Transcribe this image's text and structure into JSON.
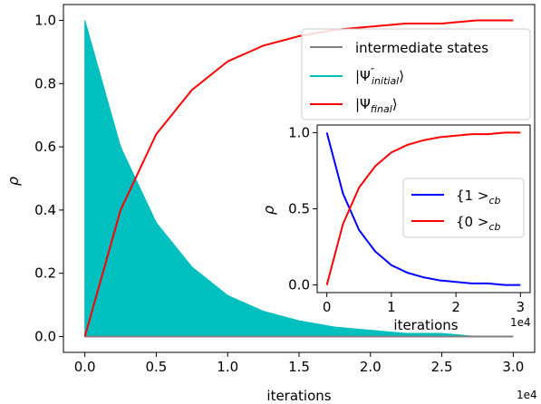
{
  "chart_data": [
    {
      "type": "line",
      "xlabel": "iterations",
      "ylabel": "ρ",
      "x_offset_label": "1e4",
      "xlim": [
        -1500,
        31500
      ],
      "ylim": [
        -0.05,
        1.05
      ],
      "xticks": [
        0,
        5000,
        10000,
        15000,
        20000,
        25000,
        30000
      ],
      "xtick_labels": [
        "0.0",
        "0.5",
        "1.0",
        "1.5",
        "2.0",
        "2.5",
        "3.0"
      ],
      "yticks": [
        0.0,
        0.2,
        0.4,
        0.6,
        0.8,
        1.0
      ],
      "ytick_labels": [
        "0.0",
        "0.2",
        "0.4",
        "0.6",
        "0.8",
        "1.0"
      ],
      "legend_location": "upper right",
      "series": [
        {
          "name": "intermediate states",
          "color": "#808080",
          "x": [
            0,
            30000
          ],
          "y": [
            0.0,
            0.0
          ]
        },
        {
          "name": "|Ψ″initial⟩",
          "color": "#00bfbf",
          "style": "filled oscillation envelope",
          "x": [
            0,
            2500,
            5000,
            7500,
            10000,
            12500,
            15000,
            17500,
            20000,
            22500,
            25000,
            27500,
            30000
          ],
          "y": [
            1.0,
            0.6,
            0.36,
            0.22,
            0.13,
            0.08,
            0.05,
            0.03,
            0.02,
            0.01,
            0.01,
            0.0,
            0.0
          ]
        },
        {
          "name": "|Ψfinal⟩",
          "color": "#ff0000",
          "x": [
            0,
            2500,
            5000,
            7500,
            10000,
            12500,
            15000,
            17500,
            20000,
            22500,
            25000,
            27500,
            30000
          ],
          "y": [
            0.0,
            0.4,
            0.64,
            0.78,
            0.87,
            0.92,
            0.95,
            0.97,
            0.98,
            0.99,
            0.99,
            1.0,
            1.0
          ]
        }
      ],
      "legend_labels": {
        "intermediate": "intermediate states",
        "initial_pre": "|Ψ",
        "initial_sup": "″",
        "initial_sub": "initial",
        "initial_post": "⟩",
        "final_pre": "|Ψ",
        "final_sub": "final",
        "final_post": "⟩"
      }
    },
    {
      "type": "line",
      "xlabel": "iterations",
      "ylabel": "ρ",
      "x_offset_label": "1e4",
      "xlim": [
        -1500,
        31500
      ],
      "ylim": [
        -0.05,
        1.05
      ],
      "xticks": [
        0,
        10000,
        20000,
        30000
      ],
      "xtick_labels": [
        "0",
        "1",
        "2",
        "3"
      ],
      "yticks": [
        0.0,
        0.5,
        1.0
      ],
      "ytick_labels": [
        "0.0",
        "0.5",
        "1.0"
      ],
      "legend_location": "center right",
      "series": [
        {
          "name": "{1 >cb",
          "color": "#0000ff",
          "x": [
            0,
            2500,
            5000,
            7500,
            10000,
            12500,
            15000,
            17500,
            20000,
            22500,
            25000,
            27500,
            30000
          ],
          "y": [
            1.0,
            0.6,
            0.36,
            0.22,
            0.13,
            0.08,
            0.05,
            0.03,
            0.02,
            0.01,
            0.01,
            0.0,
            0.0
          ]
        },
        {
          "name": "{0 >cb",
          "color": "#ff0000",
          "x": [
            0,
            2500,
            5000,
            7500,
            10000,
            12500,
            15000,
            17500,
            20000,
            22500,
            25000,
            27500,
            30000
          ],
          "y": [
            0.0,
            0.4,
            0.64,
            0.78,
            0.87,
            0.92,
            0.95,
            0.97,
            0.98,
            0.99,
            0.99,
            1.0,
            1.0
          ]
        }
      ],
      "legend_labels": {
        "one_pre": "{1 >",
        "one_sub": "cb",
        "zero_pre": "{0 >",
        "zero_sub": "cb"
      }
    }
  ]
}
